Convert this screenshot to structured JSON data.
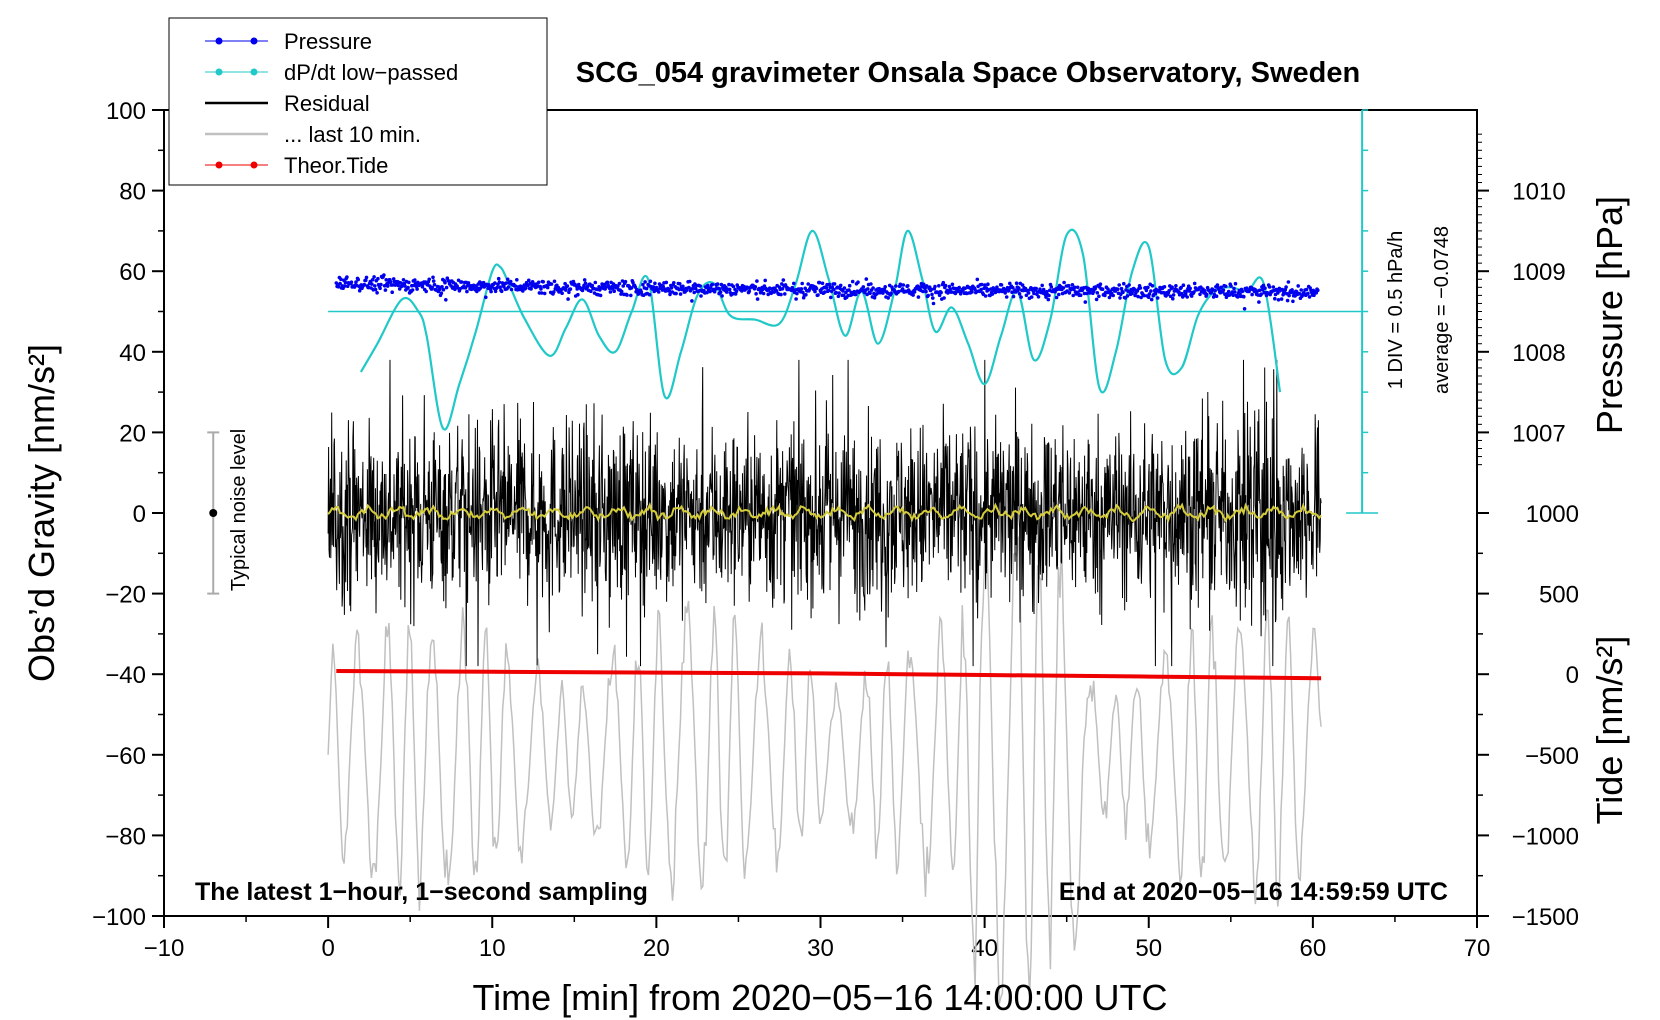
{
  "chart_data": {
    "type": "line",
    "title": "SCG_054 gravimeter Onsala Space Observatory, Sweden",
    "xlabel": "Time [min] from 2020−05−16 14:00:00 UTC",
    "ylabel_left": "Obs’d Gravity [nm/s²]",
    "ylabel_right_pressure": "Pressure [hPa]",
    "ylabel_right_tide": "Tide [nm/s²]",
    "xlim": [
      -10,
      70
    ],
    "ylim": [
      -100,
      100
    ],
    "x_ticks": [
      -10,
      0,
      10,
      20,
      30,
      40,
      50,
      60,
      70
    ],
    "x_tick_labels": [
      "−10",
      "0",
      "10",
      "20",
      "30",
      "40",
      "50",
      "60",
      "70"
    ],
    "y_ticks": [
      -100,
      -80,
      -60,
      -40,
      -20,
      0,
      20,
      40,
      60,
      80,
      100
    ],
    "y_tick_labels": [
      "−100",
      "−80",
      "−60",
      "−40",
      "−20",
      "0",
      "20",
      "40",
      "60",
      "80",
      "100"
    ],
    "pressure_ticks": [
      1007,
      1008,
      1009,
      1010
    ],
    "pressure_tick_labels": [
      "1007",
      "1008",
      "1009",
      "1010"
    ],
    "pressure_to_left_axis": {
      "hpa_at_zero_hpa": 1009,
      "left_value_at_1009": 60,
      "left_units_per_hpa": 20
    },
    "tide_ticks": [
      -1500,
      -1000,
      -500,
      0,
      500,
      1000
    ],
    "tide_tick_labels": [
      "−1500",
      "−1000",
      "−500",
      "0",
      "500",
      "1000"
    ],
    "tide_to_left_axis": {
      "left_value_at_minus_1500": -100,
      "left_units_per_nms2": 0.04
    },
    "legend": [
      {
        "label": "Pressure",
        "color": "#0000ee",
        "marker": "dot"
      },
      {
        "label": "dP/dt low−passed",
        "color": "#20c8c8",
        "marker": "dot"
      },
      {
        "label": "Residual",
        "color": "#000000",
        "marker": "none"
      },
      {
        "label": "... last 10 min.",
        "color": "#c0c0c0",
        "marker": "none"
      },
      {
        "label": "Theor.Tide",
        "color": "#ee0000",
        "marker": "dot"
      }
    ],
    "series": [
      {
        "name": "Pressure",
        "axis": "pressure_hPa",
        "color": "#0000ee",
        "x": [
          0.5,
          5,
          10,
          15,
          20,
          25,
          30,
          35,
          40,
          45,
          50,
          55,
          60.3
        ],
        "values": [
          1008.85,
          1008.83,
          1008.82,
          1008.8,
          1008.79,
          1008.78,
          1008.77,
          1008.77,
          1008.76,
          1008.76,
          1008.75,
          1008.75,
          1008.74
        ]
      },
      {
        "name": "dP/dt low−passed",
        "axis": "left",
        "color": "#20c8c8",
        "x": [
          2,
          3,
          4.5,
          5.5,
          6,
          7,
          8,
          9,
          10,
          10.5,
          11,
          12,
          13.5,
          14.5,
          15.5,
          16.5,
          17.5,
          18.5,
          19.5,
          20.5,
          21.5,
          22.5,
          23.5,
          24.5,
          26,
          27.5,
          28.5,
          29.5,
          30.5,
          31.5,
          32.5,
          33.5,
          34.5,
          35.3,
          36.2,
          37,
          38,
          39,
          40,
          41,
          42,
          43,
          44,
          45,
          46,
          47,
          48,
          49,
          50,
          51,
          52,
          53,
          54,
          55,
          56,
          57,
          58
        ],
        "values": [
          35,
          42,
          53,
          50,
          44,
          21,
          32,
          45,
          60,
          61,
          57,
          48,
          39,
          46,
          53,
          44,
          40,
          50,
          58,
          29,
          40,
          54,
          57,
          49,
          48,
          47,
          57,
          70,
          58,
          44,
          55,
          42,
          55,
          70,
          58,
          45,
          51,
          42,
          32,
          44,
          55,
          38,
          48,
          69,
          64,
          31,
          40,
          60,
          66,
          38,
          36,
          49,
          55,
          56,
          55,
          57,
          30
        ]
      },
      {
        "name": "Residual",
        "axis": "left",
        "color": "#000000",
        "x_range": [
          0,
          60.5
        ],
        "noise_envelope": [
          -38,
          38
        ]
      },
      {
        "name": "Residual smoothed",
        "axis": "left",
        "color": "#d4cc3a",
        "x_range": [
          0,
          60.5
        ],
        "approx_value": 0
      },
      {
        "name": "... last 10 min.",
        "axis": "left",
        "color": "#c0c0c0",
        "x_range": [
          0,
          60.5
        ],
        "approx_center": -60,
        "amplitude": 40
      },
      {
        "name": "Theor.Tide",
        "axis": "tide_nms2",
        "color": "#ee0000",
        "x": [
          0.5,
          10,
          20,
          30,
          40,
          50,
          60.5
        ],
        "values": [
          20,
          15,
          10,
          5,
          -5,
          -15,
          -25
        ]
      }
    ],
    "reference_line": {
      "name": "dP/dt zero line",
      "axis": "left",
      "value": 50,
      "x_range": [
        0,
        63
      ]
    },
    "pressure_rate_scale": {
      "x": 63,
      "ymin": 0,
      "ymax": 100,
      "minor_step": 10
    },
    "noise_level": {
      "label": "Typical noise level",
      "x": -7,
      "center": 0,
      "low": -20,
      "high": 20
    },
    "annotations": {
      "bottom_left": "The latest 1−hour, 1−second sampling",
      "bottom_right": "End at 2020−05−16 14:59:59 UTC",
      "scale_div": "1 DIV = 0.5 hPa/h",
      "scale_avg": "average = −0.0748"
    }
  }
}
